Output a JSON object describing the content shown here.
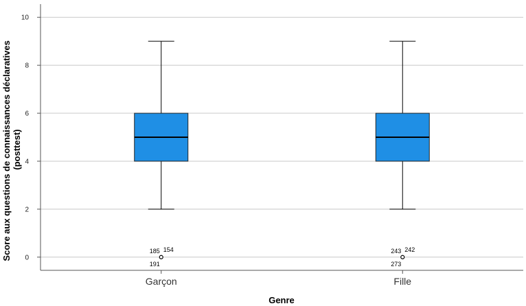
{
  "chart_data": {
    "type": "boxplot",
    "xlabel": "Genre",
    "ylabel": [
      "Score aux questions de connaissances déclaratives",
      "(posttest)"
    ],
    "ylim": [
      -0.55,
      10.55
    ],
    "yticks": [
      0,
      2,
      4,
      6,
      8,
      10
    ],
    "grid": "horizontal",
    "colors": {
      "box": "#1f8fe5",
      "grid": "#c8c8c8",
      "line": "#000000"
    },
    "categories": [
      "Garçon",
      "Fille"
    ],
    "boxes": [
      {
        "category": "Garçon",
        "min": 2,
        "q1": 4,
        "median": 5,
        "q3": 6,
        "max": 9,
        "outliers": [
          {
            "value": 0,
            "labels": [
              "185",
              "154",
              "191"
            ]
          }
        ]
      },
      {
        "category": "Fille",
        "min": 2,
        "q1": 4,
        "median": 5,
        "q3": 6,
        "max": 9,
        "outliers": [
          {
            "value": 0,
            "labels": [
              "243",
              "242",
              "273"
            ]
          }
        ]
      }
    ]
  }
}
